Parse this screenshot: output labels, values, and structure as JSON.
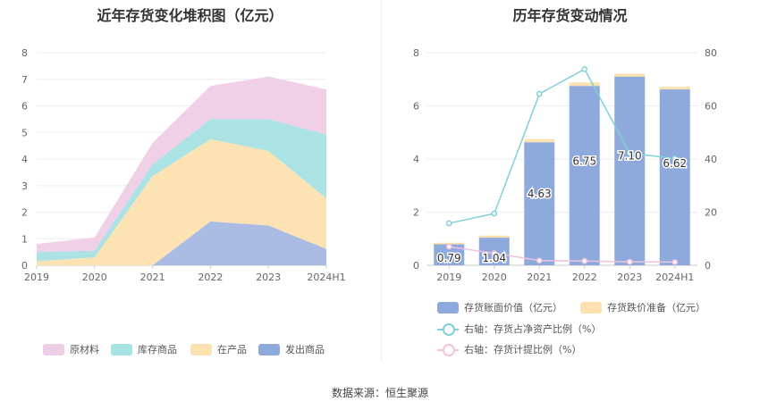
{
  "chart_data": [
    {
      "type": "area",
      "stacked": true,
      "title": "近年存货变化堆积图（亿元）",
      "categories": [
        "2019",
        "2020",
        "2021",
        "2022",
        "2023",
        "2024H1"
      ],
      "ylim": [
        0,
        8
      ],
      "yticks": [
        "0",
        "1",
        "2",
        "3",
        "4",
        "5",
        "6",
        "7",
        "8"
      ],
      "series": [
        {
          "name": "发出商品",
          "color": "#a5b8e2",
          "values": [
            0,
            0,
            0,
            1.65,
            1.5,
            0.62
          ]
        },
        {
          "name": "在产品",
          "color": "#fde1b0",
          "values": [
            0.15,
            0.3,
            3.35,
            3.1,
            2.8,
            1.9
          ]
        },
        {
          "name": "库存商品",
          "color": "#a7e2e3",
          "values": [
            0.35,
            0.25,
            0.45,
            0.75,
            1.2,
            2.4
          ]
        },
        {
          "name": "原材料",
          "color": "#eecde6",
          "values": [
            0.3,
            0.5,
            0.8,
            1.25,
            1.6,
            1.7
          ]
        }
      ],
      "legend_order": [
        "原材料",
        "库存商品",
        "在产品",
        "发出商品"
      ],
      "legend_position": "bottom"
    },
    {
      "type": "bar",
      "stacked": true,
      "title": "历年存货变动情况",
      "categories": [
        "2019",
        "2020",
        "2021",
        "2022",
        "2023",
        "2024H1"
      ],
      "ylim_left": [
        0,
        8
      ],
      "yticks_left": [
        "0",
        "2",
        "4",
        "6",
        "8"
      ],
      "ylim_right": [
        0,
        80
      ],
      "yticks_right": [
        "0",
        "20",
        "40",
        "60",
        "80"
      ],
      "bar_series": [
        {
          "name": "存货账面价值（亿元）",
          "color": "#8eaadc",
          "values": [
            0.79,
            1.04,
            4.63,
            6.75,
            7.1,
            6.62
          ],
          "labels": [
            "0.79",
            "1.04",
            "4.63",
            "6.75",
            "7.10",
            "6.62"
          ]
        },
        {
          "name": "存货跌价准备（亿元）",
          "color": "#fde1b0",
          "values": [
            0.06,
            0.08,
            0.12,
            0.13,
            0.11,
            0.1
          ]
        }
      ],
      "line_series": [
        {
          "name": "右轴：存货占净资产比例（%）",
          "color": "#7fd1d9",
          "values": [
            15.8,
            19.5,
            64.5,
            73.8,
            42.2,
            40.2
          ]
        },
        {
          "name": "右轴：存货计提比例（%）",
          "color": "#efc2df",
          "values": [
            7.0,
            4.5,
            1.8,
            1.6,
            1.3,
            1.2
          ]
        }
      ],
      "legend_position": "bottom"
    }
  ],
  "footer": {
    "source": "数据来源：恒生聚源"
  }
}
